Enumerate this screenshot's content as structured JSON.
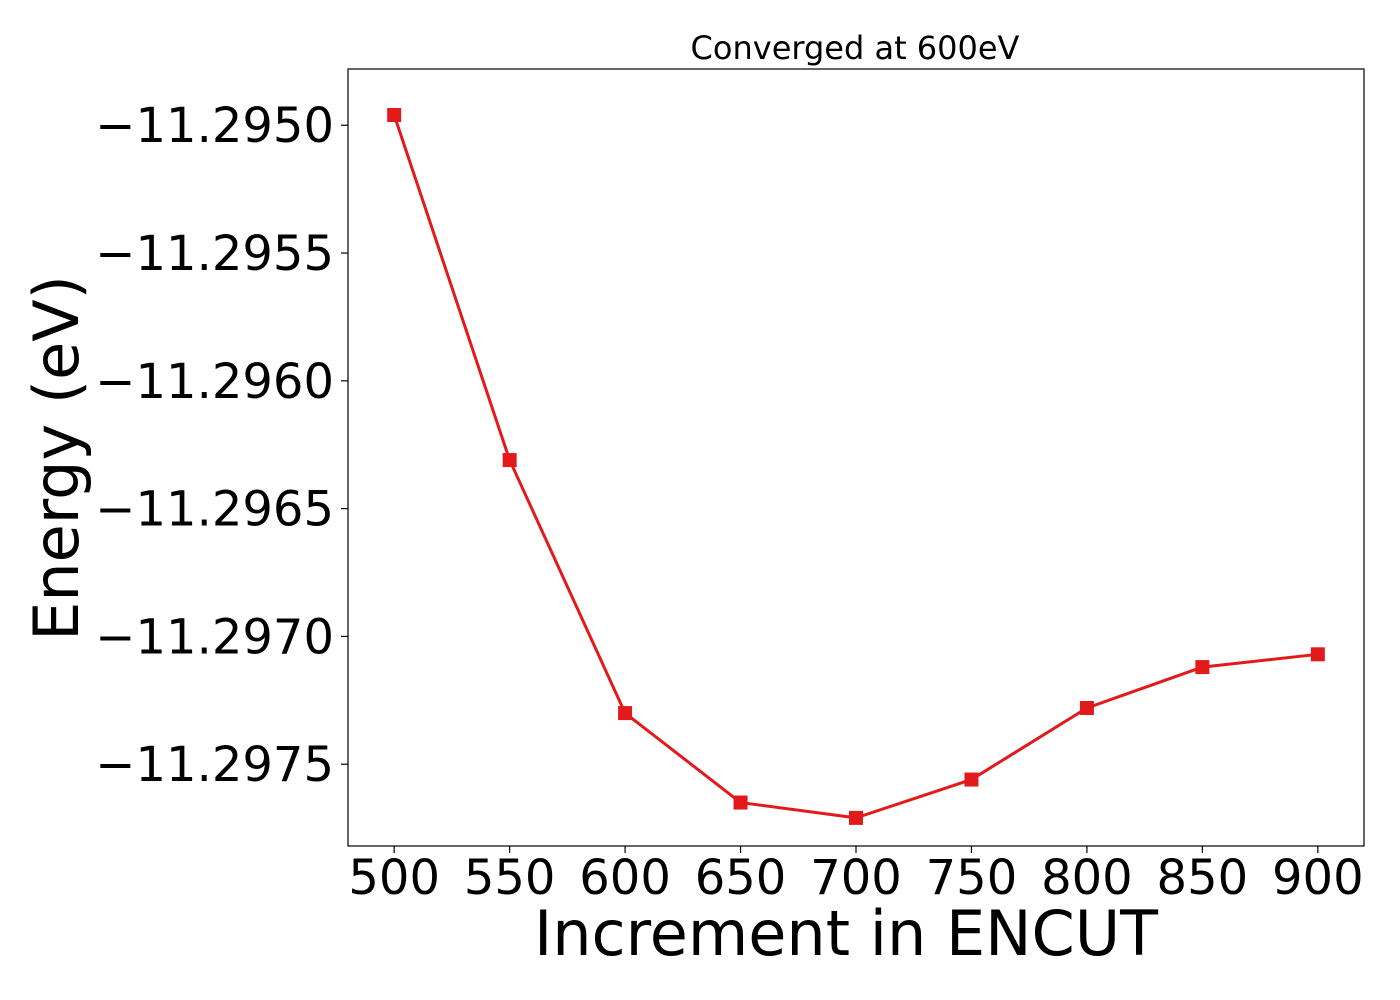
{
  "chart_data": {
    "type": "line",
    "title": "Converged at 600eV",
    "xlabel": "Increment in ENCUT",
    "ylabel": "Energy (eV)",
    "x": [
      500,
      550,
      600,
      650,
      700,
      750,
      800,
      850,
      900
    ],
    "series": [
      {
        "values": [
          -11.29496,
          -11.29631,
          -11.2973,
          -11.29765,
          -11.29771,
          -11.29756,
          -11.29728,
          -11.29712,
          -11.29707
        ]
      }
    ],
    "xticks": [
      500,
      550,
      600,
      650,
      700,
      750,
      800,
      850,
      900
    ],
    "xtick_labels": [
      "500",
      "550",
      "600",
      "650",
      "700",
      "750",
      "800",
      "850",
      "900"
    ],
    "yticks": [
      -11.295,
      -11.2955,
      -11.296,
      -11.2965,
      -11.297,
      -11.2975
    ],
    "ytick_labels": [
      "−11.2950",
      "−11.2955",
      "−11.2960",
      "−11.2965",
      "−11.2970",
      "−11.2975"
    ],
    "xlim": [
      480,
      920
    ],
    "ylim": [
      -11.29782,
      -11.29478
    ],
    "grid": false,
    "line_color": "#e31a1c",
    "marker": "square"
  }
}
